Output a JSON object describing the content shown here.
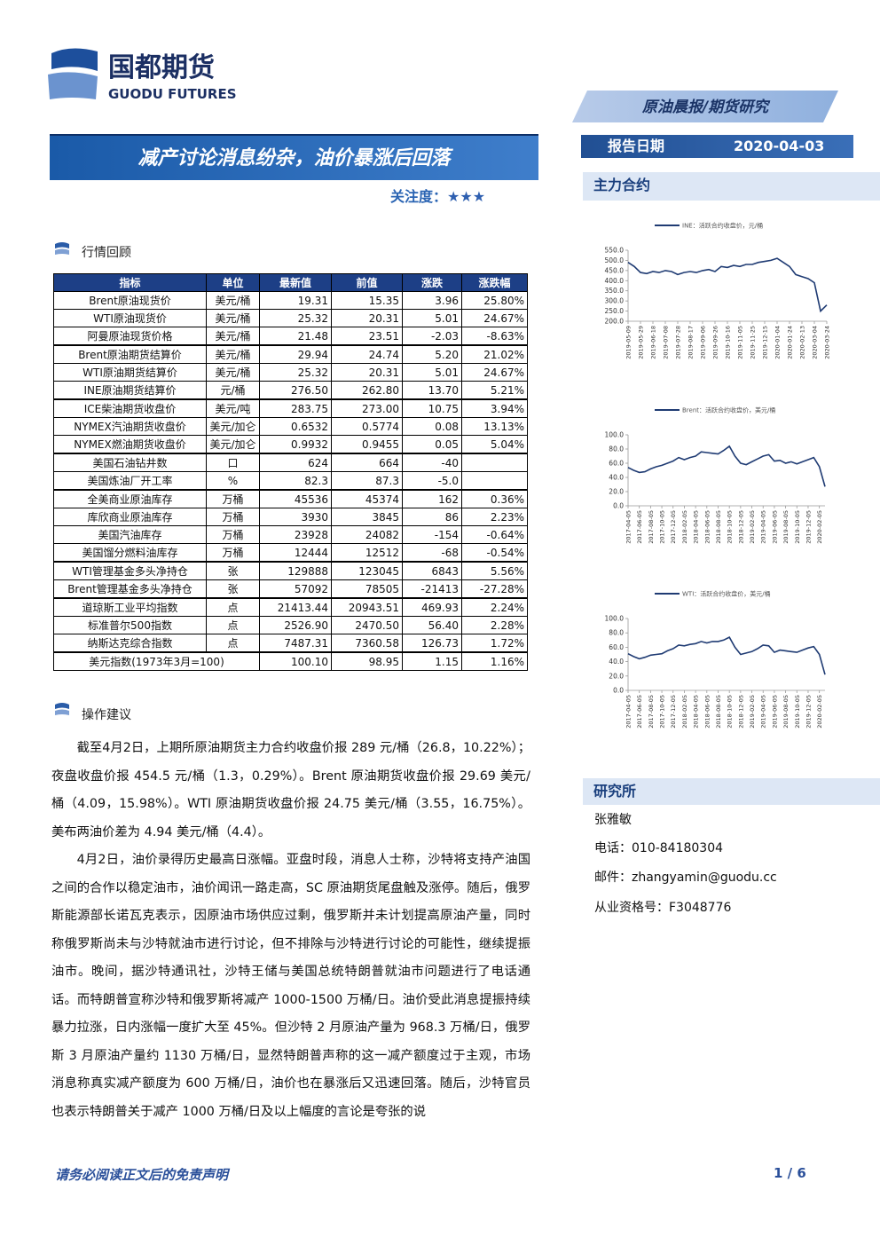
{
  "header": {
    "logo_cn": "国都期货",
    "logo_en": "GUODU FUTURES",
    "report_type": "原油晨报/期货研究",
    "title": "减产讨论消息纷杂，油价暴涨后回落",
    "attention_label": "关注度：",
    "attention_stars": "★★★",
    "date_label": "报告日期",
    "date": "2020-04-03"
  },
  "sections": {
    "market": "行情回顾",
    "advice": "操作建议",
    "contracts": "主力合约",
    "institute": "研究所"
  },
  "table": {
    "columns": [
      "指标",
      "单位",
      "最新值",
      "前值",
      "涨跌",
      "涨跌幅"
    ],
    "rows": [
      [
        "Brent原油现货价",
        "美元/桶",
        "19.31",
        "15.35",
        "3.96",
        "25.80%"
      ],
      [
        "WTI原油现货价",
        "美元/桶",
        "25.32",
        "20.31",
        "5.01",
        "24.67%"
      ],
      [
        "阿曼原油现货价格",
        "美元/桶",
        "21.48",
        "23.51",
        "-2.03",
        "-8.63%"
      ],
      [
        "Brent原油期货结算价",
        "美元/桶",
        "29.94",
        "24.74",
        "5.20",
        "21.02%"
      ],
      [
        "WTI原油期货结算价",
        "美元/桶",
        "25.32",
        "20.31",
        "5.01",
        "24.67%"
      ],
      [
        "INE原油期货结算价",
        "元/桶",
        "276.50",
        "262.80",
        "13.70",
        "5.21%"
      ],
      [
        "ICE柴油期货收盘价",
        "美元/吨",
        "283.75",
        "273.00",
        "10.75",
        "3.94%"
      ],
      [
        "NYMEX汽油期货收盘价",
        "美元/加仑",
        "0.6532",
        "0.5774",
        "0.08",
        "13.13%"
      ],
      [
        "NYMEX燃油期货收盘价",
        "美元/加仑",
        "0.9932",
        "0.9455",
        "0.05",
        "5.04%"
      ],
      [
        "美国石油钻井数",
        "口",
        "624",
        "664",
        "-40"
      ],
      [
        "美国炼油厂开工率",
        "%",
        "82.3",
        "87.3",
        "-5.0"
      ],
      [
        "全美商业原油库存",
        "万桶",
        "45536",
        "45374",
        "162",
        "0.36%"
      ],
      [
        "库欣商业原油库存",
        "万桶",
        "3930",
        "3845",
        "86",
        "2.23%"
      ],
      [
        "美国汽油库存",
        "万桶",
        "23928",
        "24082",
        "-154",
        "-0.64%"
      ],
      [
        "美国馏分燃料油库存",
        "万桶",
        "12444",
        "12512",
        "-68",
        "-0.54%"
      ],
      [
        "WTI管理基金多头净持仓",
        "张",
        "129888",
        "123045",
        "6843",
        "5.56%"
      ],
      [
        "Brent管理基金多头净持仓",
        "张",
        "57092",
        "78505",
        "-21413",
        "-27.28%"
      ],
      [
        "道琼斯工业平均指数",
        "点",
        "21413.44",
        "20943.51",
        "469.93",
        "2.24%"
      ],
      [
        "标准普尔500指数",
        "点",
        "2526.90",
        "2470.50",
        "56.40",
        "2.28%"
      ],
      [
        "纳斯达克综合指数",
        "点",
        "7487.31",
        "7360.58",
        "126.73",
        "1.72%"
      ]
    ],
    "index_row": [
      "美元指数(1973年3月=100)",
      "100.10",
      "98.95",
      "1.15",
      "1.16%"
    ]
  },
  "advice_paragraphs": [
    "截至4月2日，上期所原油期货主力合约收盘价报 289 元/桶（26.8，10.22%）；夜盘收盘价报 454.5 元/桶（1.3，0.29%）。Brent 原油期货收盘价报 29.69 美元/桶（4.09，15.98%）。WTI 原油期货收盘价报 24.75 美元/桶（3.55，16.75%）。美布两油价差为 4.94 美元/桶（4.4）。",
    "4月2日，油价录得历史最高日涨幅。亚盘时段，消息人士称，沙特将支持产油国之间的合作以稳定油市，油价闻讯一路走高，SC 原油期货尾盘触及涨停。随后，俄罗斯能源部长诺瓦克表示，因原油市场供应过剩，俄罗斯并未计划提高原油产量，同时称俄罗斯尚未与沙特就油市进行讨论，但不排除与沙特进行讨论的可能性，继续提振油市。晚间，据沙特通讯社，沙特王储与美国总统特朗普就油市问题进行了电话通话。而特朗普宣称沙特和俄罗斯将减产 1000-1500 万桶/日。油价受此消息提振持续暴力拉涨，日内涨幅一度扩大至 45%。但沙特 2 月原油产量为 968.3 万桶/日，俄罗斯 3 月原油产量约 1130 万桶/日，显然特朗普声称的这一减产额度过于主观，市场消息称真实减产额度为 600 万桶/日，油价也在暴涨后又迅速回落。随后，沙特官员也表示特朗普关于减产 1000 万桶/日及以上幅度的言论是夸张的说"
  ],
  "analyst": {
    "name": "张雅敏",
    "phone": "电话：010-84180304",
    "email": "邮件：zhangyamin@guodu.cc",
    "license": "从业资格号：F3048776"
  },
  "charts": [
    {
      "type": "line",
      "categories": [
        "2019-05-09",
        null,
        "2019-05-29",
        null,
        "2019-06-18",
        null,
        "2019-07-08",
        null,
        "2019-07-28",
        null,
        "2019-08-17",
        null,
        "2019-09-06",
        null,
        "2019-09-26",
        null,
        "2019-10-16",
        null,
        "2019-11-05",
        null,
        "2019-11-25",
        null,
        "2019-12-15",
        null,
        "2020-01-04",
        null,
        "2020-01-24",
        null,
        "2020-02-13",
        null,
        "2020-03-04",
        null,
        "2020-03-24"
      ],
      "series": [
        {
          "name": "INE：活跃合约收盘价，元/桶",
          "color": "#1f3b73",
          "values": [
            490,
            470,
            440,
            435,
            445,
            440,
            450,
            445,
            430,
            440,
            445,
            440,
            450,
            455,
            445,
            470,
            465,
            475,
            470,
            480,
            480,
            490,
            495,
            500,
            510,
            490,
            470,
            430,
            420,
            410,
            390,
            250,
            280
          ]
        }
      ],
      "ylim": [
        200,
        550
      ],
      "yticks": [
        {
          "value": 200,
          "label": "200.0"
        },
        {
          "value": 250,
          "label": "250.0"
        },
        {
          "value": 300,
          "label": "300.0"
        },
        {
          "value": 350,
          "label": "350.0"
        },
        {
          "value": 400,
          "label": "400.0"
        },
        {
          "value": 450,
          "label": "450.0"
        },
        {
          "value": 500,
          "label": "500.0"
        },
        {
          "value": 550,
          "label": "550.0"
        }
      ]
    },
    {
      "type": "line",
      "categories": [
        "2017-04-05",
        null,
        "2017-06-05",
        null,
        "2017-08-05",
        null,
        "2017-10-05",
        null,
        "2017-12-05",
        null,
        "2018-02-05",
        null,
        "2018-04-05",
        null,
        "2018-06-05",
        null,
        "2018-08-05",
        null,
        "2018-10-05",
        null,
        "2018-12-05",
        null,
        "2019-02-05",
        null,
        "2019-04-05",
        null,
        "2019-06-05",
        null,
        "2019-08-05",
        null,
        "2019-10-05",
        null,
        "2019-12-05",
        null,
        "2020-02-05",
        null
      ],
      "series": [
        {
          "name": "Brent：活跃合约收盘价，美元/桶",
          "color": "#1f3b73",
          "values": [
            54,
            50,
            47,
            48,
            52,
            55,
            57,
            60,
            63,
            68,
            65,
            68,
            70,
            76,
            75,
            74,
            73,
            78,
            84,
            70,
            60,
            58,
            62,
            66,
            70,
            72,
            63,
            64,
            60,
            62,
            59,
            62,
            65,
            68,
            55,
            27
          ]
        }
      ],
      "ylim": [
        0,
        100
      ],
      "yticks": [
        {
          "value": 0,
          "label": "0.0"
        },
        {
          "value": 20,
          "label": "20.0"
        },
        {
          "value": 40,
          "label": "40.0"
        },
        {
          "value": 60,
          "label": "60.0"
        },
        {
          "value": 80,
          "label": "80.0"
        },
        {
          "value": 100,
          "label": "100.0"
        }
      ]
    },
    {
      "type": "line",
      "categories": [
        "2017-04-05",
        null,
        "2017-06-05",
        null,
        "2017-08-05",
        null,
        "2017-10-05",
        null,
        "2017-12-05",
        null,
        "2018-02-05",
        null,
        "2018-04-05",
        null,
        "2018-06-05",
        null,
        "2018-08-05",
        null,
        "2018-10-05",
        null,
        "2018-12-05",
        null,
        "2019-02-05",
        null,
        "2019-04-05",
        null,
        "2019-06-05",
        null,
        "2019-08-05",
        null,
        "2019-10-05",
        null,
        "2019-12-05",
        null,
        "2020-02-05",
        null
      ],
      "series": [
        {
          "name": "WTI：活跃合约收盘价，美元/桶",
          "color": "#1f3b73",
          "values": [
            51,
            47,
            44,
            46,
            49,
            50,
            51,
            55,
            58,
            63,
            62,
            64,
            65,
            68,
            66,
            68,
            68,
            70,
            74,
            60,
            50,
            52,
            54,
            58,
            63,
            62,
            53,
            56,
            55,
            54,
            53,
            56,
            59,
            61,
            50,
            22
          ]
        }
      ],
      "ylim": [
        0,
        100
      ],
      "yticks": [
        {
          "value": 0,
          "label": "0.0"
        },
        {
          "value": 20,
          "label": "20.0"
        },
        {
          "value": 40,
          "label": "40.0"
        },
        {
          "value": 60,
          "label": "60.0"
        },
        {
          "value": 80,
          "label": "80.0"
        },
        {
          "value": 100,
          "label": "100.0"
        }
      ]
    }
  ],
  "footer": {
    "disclaimer": "请务必阅读正文后的免责声明",
    "page": "1 / 6"
  }
}
